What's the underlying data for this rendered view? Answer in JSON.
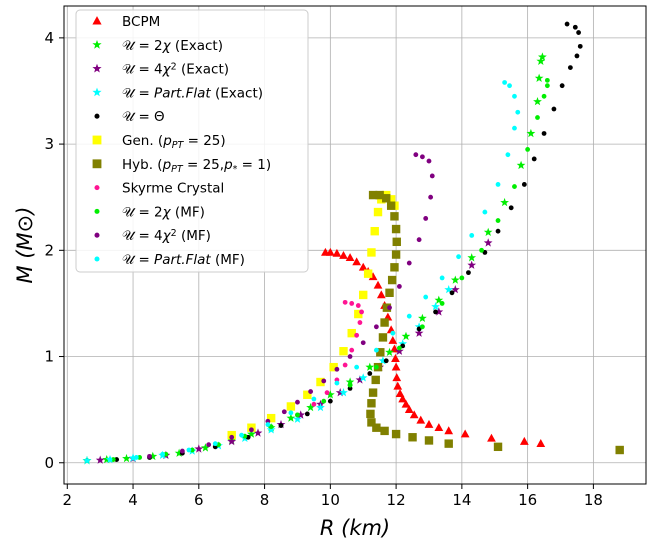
{
  "chart_data": {
    "type": "scatter",
    "xlabel": "R (km)",
    "ylabel": "M (M⊙)",
    "xlim": [
      1.9,
      19.6
    ],
    "ylim": [
      -0.2,
      4.3
    ],
    "xticks": [
      "2",
      "4",
      "6",
      "8",
      "10",
      "12",
      "14",
      "16",
      "18"
    ],
    "yticks": [
      "0",
      "1",
      "2",
      "3",
      "4"
    ],
    "grid": true,
    "legend_position": "top-left",
    "series": [
      {
        "name": "BCPM",
        "legend": [
          {
            "t": "BCPM"
          }
        ],
        "marker": "triangle",
        "color": "#ff0000",
        "points": [
          [
            9.85,
            1.98
          ],
          [
            10.0,
            1.98
          ],
          [
            10.2,
            1.97
          ],
          [
            10.4,
            1.95
          ],
          [
            10.6,
            1.93
          ],
          [
            10.8,
            1.89
          ],
          [
            11.0,
            1.84
          ],
          [
            11.15,
            1.8
          ],
          [
            11.3,
            1.75
          ],
          [
            11.45,
            1.67
          ],
          [
            11.55,
            1.58
          ],
          [
            11.65,
            1.48
          ],
          [
            11.75,
            1.37
          ],
          [
            11.85,
            1.25
          ],
          [
            11.9,
            1.15
          ],
          [
            11.95,
            1.07
          ],
          [
            11.98,
            0.98
          ],
          [
            12.0,
            0.9
          ],
          [
            12.02,
            0.8
          ],
          [
            12.05,
            0.72
          ],
          [
            12.12,
            0.65
          ],
          [
            12.2,
            0.6
          ],
          [
            12.3,
            0.55
          ],
          [
            12.4,
            0.5
          ],
          [
            12.55,
            0.45
          ],
          [
            12.75,
            0.4
          ],
          [
            13.0,
            0.36
          ],
          [
            13.3,
            0.33
          ],
          [
            13.6,
            0.3
          ],
          [
            14.1,
            0.27
          ],
          [
            14.9,
            0.23
          ],
          [
            15.9,
            0.2
          ],
          [
            16.4,
            0.18
          ]
        ]
      },
      {
        "name": "U = 2χ (Exact)",
        "legend": [
          {
            "t": "𝒰 = 2"
          },
          {
            "t": "χ",
            "i": true
          },
          {
            "t": " (Exact)"
          }
        ],
        "marker": "star",
        "color": "#00ee00",
        "points": [
          [
            2.6,
            0.02
          ],
          [
            3.2,
            0.03
          ],
          [
            3.8,
            0.04
          ],
          [
            4.6,
            0.06
          ],
          [
            5.4,
            0.09
          ],
          [
            6.2,
            0.14
          ],
          [
            7.0,
            0.21
          ],
          [
            7.6,
            0.27
          ],
          [
            8.2,
            0.33
          ],
          [
            8.8,
            0.42
          ],
          [
            9.4,
            0.52
          ],
          [
            10.0,
            0.64
          ],
          [
            10.6,
            0.76
          ],
          [
            11.2,
            0.9
          ],
          [
            11.8,
            1.04
          ],
          [
            12.3,
            1.19
          ],
          [
            12.8,
            1.36
          ],
          [
            13.3,
            1.53
          ],
          [
            13.8,
            1.72
          ],
          [
            14.3,
            1.93
          ],
          [
            14.8,
            2.17
          ],
          [
            15.3,
            2.45
          ],
          [
            15.8,
            2.8
          ],
          [
            16.1,
            3.1
          ],
          [
            16.3,
            3.4
          ],
          [
            16.35,
            3.62
          ],
          [
            16.4,
            3.78
          ],
          [
            16.45,
            3.82
          ]
        ]
      },
      {
        "name": "U = 4χ² (Exact)",
        "legend": [
          {
            "t": "𝒰 = 4"
          },
          {
            "t": "χ",
            "i": true
          },
          {
            "t": "2",
            "sup": true
          },
          {
            "t": " (Exact)"
          }
        ],
        "marker": "star",
        "color": "#800080",
        "points": [
          [
            3.0,
            0.025
          ],
          [
            4.0,
            0.04
          ],
          [
            5.0,
            0.07
          ],
          [
            6.0,
            0.13
          ],
          [
            7.0,
            0.2
          ],
          [
            7.8,
            0.28
          ],
          [
            8.5,
            0.36
          ],
          [
            9.1,
            0.45
          ],
          [
            9.7,
            0.55
          ],
          [
            10.3,
            0.66
          ],
          [
            10.9,
            0.78
          ],
          [
            11.5,
            0.9
          ],
          [
            12.1,
            1.05
          ],
          [
            12.7,
            1.22
          ],
          [
            13.3,
            1.42
          ],
          [
            13.8,
            1.63
          ],
          [
            14.3,
            1.86
          ],
          [
            14.8,
            2.07
          ]
        ]
      },
      {
        "name": "U = Part.Flat (Exact)",
        "legend": [
          {
            "t": "𝒰 = "
          },
          {
            "t": "Part.Flat",
            "i": true
          },
          {
            "t": " (Exact)"
          }
        ],
        "marker": "star",
        "color": "#00ffff",
        "points": [
          [
            2.6,
            0.02
          ],
          [
            3.3,
            0.03
          ],
          [
            4.0,
            0.045
          ],
          [
            4.9,
            0.07
          ],
          [
            5.8,
            0.11
          ],
          [
            6.6,
            0.16
          ],
          [
            7.4,
            0.23
          ],
          [
            8.2,
            0.31
          ],
          [
            9.0,
            0.41
          ],
          [
            9.7,
            0.52
          ],
          [
            10.4,
            0.66
          ],
          [
            11.0,
            0.8
          ],
          [
            11.6,
            0.96
          ],
          [
            12.2,
            1.12
          ],
          [
            12.7,
            1.28
          ],
          [
            13.2,
            1.47
          ],
          [
            13.6,
            1.63
          ]
        ]
      },
      {
        "name": "U = Θ",
        "legend": [
          {
            "t": "𝒰 = Θ"
          }
        ],
        "marker": "dot",
        "color": "#000000",
        "points": [
          [
            2.6,
            0.02
          ],
          [
            3.5,
            0.03
          ],
          [
            4.5,
            0.05
          ],
          [
            5.5,
            0.09
          ],
          [
            6.5,
            0.15
          ],
          [
            7.5,
            0.24
          ],
          [
            8.5,
            0.35
          ],
          [
            9.3,
            0.46
          ],
          [
            10.0,
            0.58
          ],
          [
            10.6,
            0.7
          ],
          [
            11.2,
            0.84
          ],
          [
            11.7,
            0.96
          ],
          [
            12.2,
            1.1
          ],
          [
            12.7,
            1.26
          ],
          [
            13.2,
            1.42
          ],
          [
            13.7,
            1.6
          ],
          [
            14.2,
            1.79
          ],
          [
            14.7,
            1.98
          ],
          [
            15.1,
            2.18
          ],
          [
            15.5,
            2.4
          ],
          [
            15.9,
            2.62
          ],
          [
            16.2,
            2.86
          ],
          [
            16.5,
            3.1
          ],
          [
            16.8,
            3.33
          ],
          [
            17.05,
            3.55
          ],
          [
            17.3,
            3.72
          ],
          [
            17.5,
            3.83
          ],
          [
            17.6,
            3.92
          ],
          [
            17.55,
            4.05
          ],
          [
            17.45,
            4.1
          ],
          [
            17.2,
            4.13
          ]
        ]
      },
      {
        "name": "Gen. (p_PT = 25)",
        "legend": [
          {
            "t": "Gen. ("
          },
          {
            "t": "p",
            "i": true
          },
          {
            "t": "PT",
            "i": true,
            "sub": true
          },
          {
            "t": " = 25)"
          }
        ],
        "marker": "square",
        "color": "#ffff00",
        "points": [
          [
            7.0,
            0.26
          ],
          [
            7.6,
            0.33
          ],
          [
            8.2,
            0.42
          ],
          [
            8.8,
            0.53
          ],
          [
            9.3,
            0.64
          ],
          [
            9.7,
            0.76
          ],
          [
            10.1,
            0.9
          ],
          [
            10.4,
            1.05
          ],
          [
            10.65,
            1.22
          ],
          [
            10.85,
            1.4
          ],
          [
            11.0,
            1.58
          ],
          [
            11.15,
            1.78
          ],
          [
            11.25,
            1.98
          ],
          [
            11.35,
            2.18
          ],
          [
            11.45,
            2.36
          ],
          [
            11.55,
            2.48
          ],
          [
            11.7,
            2.52
          ],
          [
            11.85,
            2.48
          ],
          [
            11.95,
            2.42
          ]
        ]
      },
      {
        "name": "Hyb. (p_PT = 25, p* = 1)",
        "legend": [
          {
            "t": "Hyb. ("
          },
          {
            "t": "p",
            "i": true
          },
          {
            "t": "PT",
            "i": true,
            "sub": true
          },
          {
            "t": " = 25,"
          },
          {
            "t": "p",
            "i": true
          },
          {
            "t": "*",
            "sub": true
          },
          {
            "t": " = 1)"
          }
        ],
        "marker": "square",
        "color": "#808000",
        "points": [
          [
            11.3,
            2.52
          ],
          [
            11.5,
            2.52
          ],
          [
            11.7,
            2.49
          ],
          [
            11.85,
            2.42
          ],
          [
            11.95,
            2.32
          ],
          [
            12.0,
            2.2
          ],
          [
            12.02,
            2.08
          ],
          [
            12.0,
            1.96
          ],
          [
            11.95,
            1.84
          ],
          [
            11.88,
            1.72
          ],
          [
            11.8,
            1.6
          ],
          [
            11.72,
            1.46
          ],
          [
            11.65,
            1.32
          ],
          [
            11.6,
            1.18
          ],
          [
            11.52,
            1.04
          ],
          [
            11.45,
            0.9
          ],
          [
            11.38,
            0.78
          ],
          [
            11.3,
            0.66
          ],
          [
            11.25,
            0.56
          ],
          [
            11.22,
            0.46
          ],
          [
            11.25,
            0.38
          ],
          [
            11.4,
            0.33
          ],
          [
            11.65,
            0.3
          ],
          [
            12.0,
            0.27
          ],
          [
            12.5,
            0.24
          ],
          [
            13.0,
            0.21
          ],
          [
            13.6,
            0.18
          ],
          [
            15.1,
            0.15
          ],
          [
            18.8,
            0.12
          ]
        ]
      },
      {
        "name": "Skyrme Crystal",
        "legend": [
          {
            "t": "Skyrme Crystal"
          }
        ],
        "marker": "dot",
        "color": "#ff1493",
        "points": [
          [
            9.0,
            0.45
          ],
          [
            9.5,
            0.55
          ],
          [
            9.9,
            0.66
          ],
          [
            10.2,
            0.78
          ],
          [
            10.45,
            0.92
          ],
          [
            10.65,
            1.06
          ],
          [
            10.8,
            1.2
          ],
          [
            10.9,
            1.32
          ],
          [
            10.95,
            1.42
          ],
          [
            10.85,
            1.48
          ],
          [
            10.65,
            1.5
          ],
          [
            10.45,
            1.51
          ]
        ]
      },
      {
        "name": "U = 2χ (MF)",
        "legend": [
          {
            "t": "𝒰 = 2"
          },
          {
            "t": "χ",
            "i": true
          },
          {
            "t": " (MF)"
          }
        ],
        "marker": "dot",
        "color": "#00ee00",
        "points": [
          [
            2.6,
            0.02
          ],
          [
            3.4,
            0.03
          ],
          [
            4.2,
            0.05
          ],
          [
            5.0,
            0.08
          ],
          [
            5.8,
            0.12
          ],
          [
            6.6,
            0.17
          ],
          [
            7.4,
            0.25
          ],
          [
            8.2,
            0.34
          ],
          [
            9.0,
            0.45
          ],
          [
            9.8,
            0.58
          ],
          [
            10.6,
            0.73
          ],
          [
            11.4,
            0.9
          ],
          [
            12.1,
            1.08
          ],
          [
            12.8,
            1.28
          ],
          [
            13.4,
            1.5
          ],
          [
            14.0,
            1.74
          ],
          [
            14.6,
            2.0
          ],
          [
            15.1,
            2.28
          ],
          [
            15.6,
            2.6
          ],
          [
            16.0,
            2.95
          ],
          [
            16.3,
            3.25
          ],
          [
            16.5,
            3.45
          ],
          [
            16.6,
            3.55
          ],
          [
            16.6,
            3.6
          ]
        ]
      },
      {
        "name": "U = 4χ² (MF)",
        "legend": [
          {
            "t": "𝒰 = 4"
          },
          {
            "t": "χ",
            "i": true
          },
          {
            "t": "2",
            "sup": true
          },
          {
            "t": " (MF)"
          }
        ],
        "marker": "dot",
        "color": "#800080",
        "points": [
          [
            4.5,
            0.06
          ],
          [
            5.5,
            0.11
          ],
          [
            6.3,
            0.17
          ],
          [
            7.0,
            0.24
          ],
          [
            7.6,
            0.31
          ],
          [
            8.1,
            0.39
          ],
          [
            8.6,
            0.48
          ],
          [
            9.0,
            0.57
          ],
          [
            9.4,
            0.67
          ],
          [
            9.8,
            0.77
          ],
          [
            10.2,
            0.88
          ],
          [
            10.6,
            1.0
          ],
          [
            11.0,
            1.13
          ],
          [
            11.4,
            1.28
          ],
          [
            11.8,
            1.46
          ],
          [
            12.1,
            1.66
          ],
          [
            12.4,
            1.88
          ],
          [
            12.7,
            2.1
          ],
          [
            12.9,
            2.3
          ],
          [
            13.05,
            2.5
          ],
          [
            13.1,
            2.7
          ],
          [
            13.0,
            2.84
          ],
          [
            12.8,
            2.88
          ],
          [
            12.6,
            2.9
          ]
        ]
      },
      {
        "name": "U = Part.Flat (MF)",
        "legend": [
          {
            "t": "𝒰 = "
          },
          {
            "t": "Part.Flat",
            "i": true
          },
          {
            "t": " (MF)"
          }
        ],
        "marker": "dot",
        "color": "#00ffff",
        "points": [
          [
            2.6,
            0.02
          ],
          [
            3.3,
            0.03
          ],
          [
            4.1,
            0.05
          ],
          [
            4.9,
            0.08
          ],
          [
            5.7,
            0.12
          ],
          [
            6.5,
            0.18
          ],
          [
            7.3,
            0.26
          ],
          [
            8.1,
            0.36
          ],
          [
            8.8,
            0.47
          ],
          [
            9.5,
            0.6
          ],
          [
            10.2,
            0.75
          ],
          [
            10.8,
            0.9
          ],
          [
            11.4,
            1.06
          ],
          [
            11.9,
            1.22
          ],
          [
            12.4,
            1.38
          ],
          [
            12.9,
            1.56
          ],
          [
            13.4,
            1.74
          ],
          [
            13.9,
            1.94
          ],
          [
            14.3,
            2.14
          ],
          [
            14.7,
            2.36
          ],
          [
            15.1,
            2.62
          ],
          [
            15.4,
            2.9
          ],
          [
            15.6,
            3.15
          ],
          [
            15.7,
            3.3
          ],
          [
            15.6,
            3.45
          ],
          [
            15.45,
            3.55
          ],
          [
            15.3,
            3.58
          ]
        ]
      }
    ]
  }
}
